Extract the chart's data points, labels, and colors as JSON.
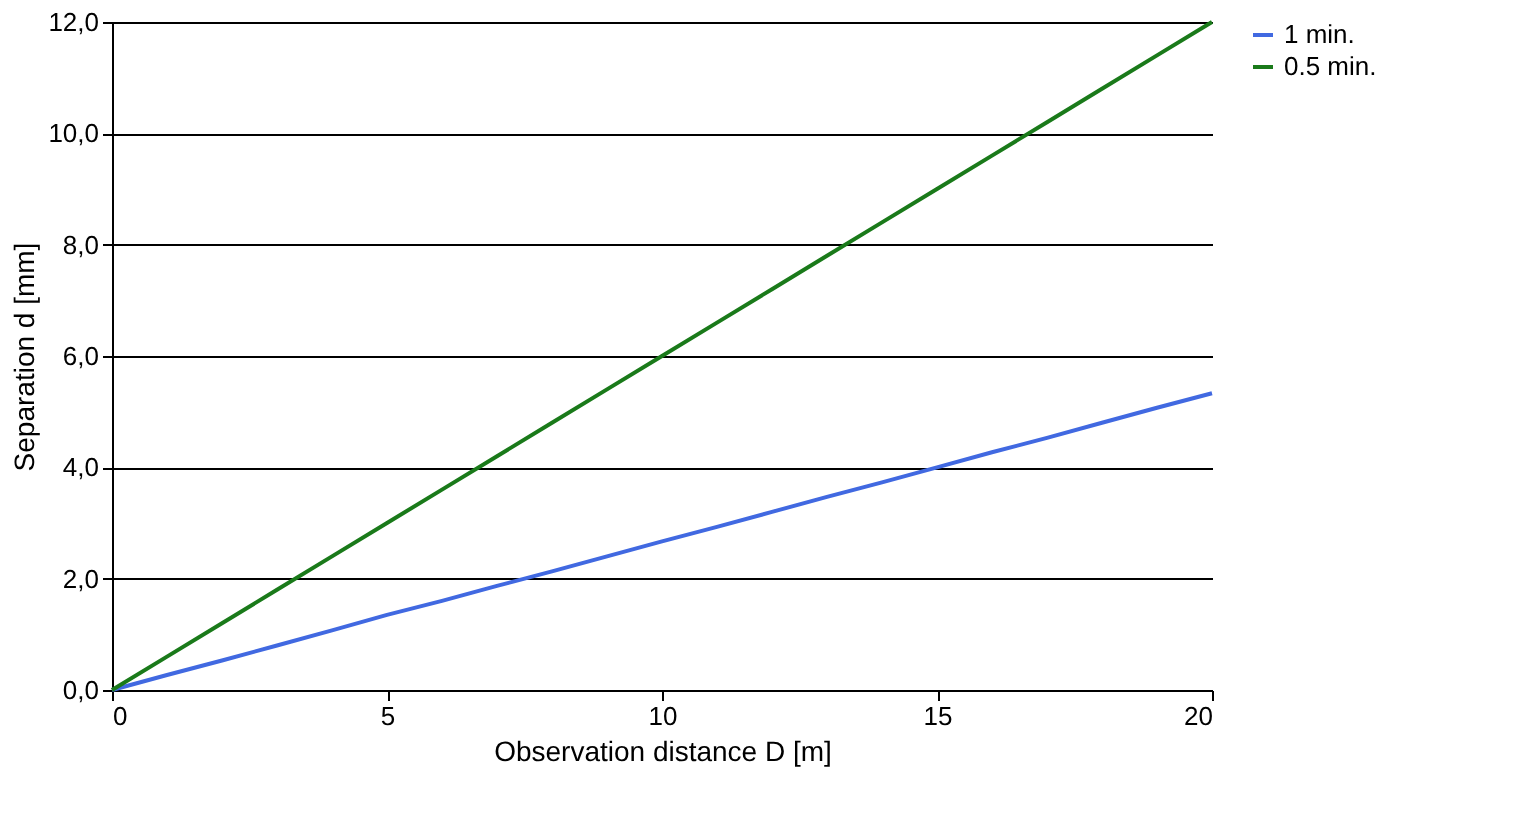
{
  "chart_data": {
    "type": "line",
    "xlabel": "Observation distance D [m]",
    "ylabel": "Separation d [mm]",
    "x": [
      0,
      1,
      2,
      3,
      4,
      5,
      6,
      7,
      8,
      9,
      10,
      11,
      12,
      13,
      14,
      15,
      16,
      17,
      18,
      19,
      20
    ],
    "series": [
      {
        "name": "1 min.",
        "color": "#4169e1",
        "values": [
          0,
          0.27,
          0.53,
          0.8,
          1.07,
          1.35,
          1.6,
          1.87,
          2.13,
          2.4,
          2.67,
          2.93,
          3.2,
          3.47,
          3.73,
          4.0,
          4.27,
          4.53,
          4.8,
          5.07,
          5.33
        ]
      },
      {
        "name": "0.5 min.",
        "color": "#1a7a1a",
        "values": [
          0,
          0.6,
          1.2,
          1.8,
          2.4,
          3.0,
          3.6,
          4.2,
          4.8,
          5.4,
          6.0,
          6.6,
          7.2,
          7.8,
          8.4,
          9.0,
          9.6,
          10.2,
          10.8,
          11.4,
          12.0
        ]
      }
    ],
    "xlim": [
      0,
      20
    ],
    "xticks": [
      0,
      5,
      10,
      15,
      20
    ],
    "ylim": [
      0,
      12
    ],
    "yticks": [
      {
        "value": 0,
        "label": "0,0"
      },
      {
        "value": 2,
        "label": "2,0"
      },
      {
        "value": 4,
        "label": "4,0"
      },
      {
        "value": 6,
        "label": "6,0"
      },
      {
        "value": 8,
        "label": "8,0"
      },
      {
        "value": 10,
        "label": "10,0"
      },
      {
        "value": 12,
        "label": "12,0"
      }
    ],
    "grid": "y",
    "legend": "right",
    "marker": "none",
    "line_style": "solid"
  }
}
